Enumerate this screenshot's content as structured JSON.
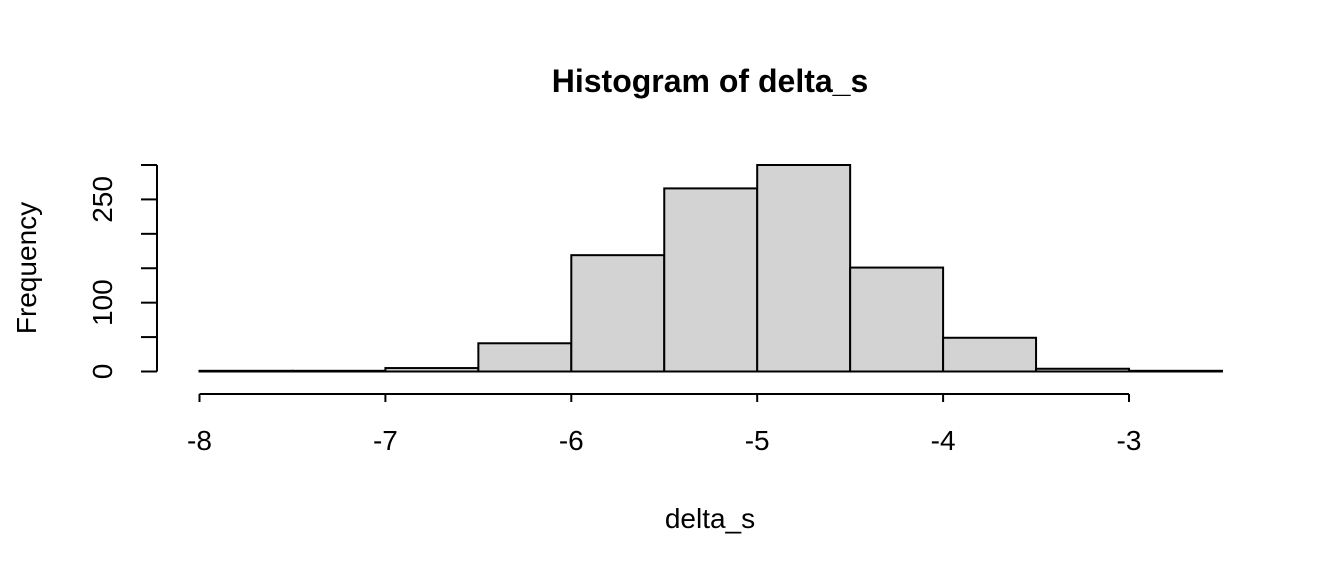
{
  "chart_data": {
    "type": "bar",
    "title": "Histogram of delta_s",
    "xlabel": "delta_s",
    "ylabel": "Frequency",
    "x_ticks": [
      -8,
      -7,
      -6,
      -5,
      -4,
      -3
    ],
    "x_tick_labels": [
      "-8",
      "-7",
      "-6",
      "-5",
      "-4",
      "-3"
    ],
    "y_ticks": [
      0,
      100,
      250
    ],
    "y_tick_labels": [
      "0",
      "100",
      "250"
    ],
    "y_minor_ticks": [
      50,
      150,
      200,
      300
    ],
    "xlim": [
      -8.15,
      -2.5
    ],
    "ylim": [
      0,
      300
    ],
    "bins": [
      {
        "start": -8.0,
        "end": -7.5,
        "count": 1
      },
      {
        "start": -7.5,
        "end": -7.0,
        "count": 1
      },
      {
        "start": -7.0,
        "end": -6.5,
        "count": 5
      },
      {
        "start": -6.5,
        "end": -6.0,
        "count": 41
      },
      {
        "start": -6.0,
        "end": -5.5,
        "count": 169
      },
      {
        "start": -5.5,
        "end": -5.0,
        "count": 266
      },
      {
        "start": -5.0,
        "end": -4.5,
        "count": 300
      },
      {
        "start": -4.5,
        "end": -4.0,
        "count": 151
      },
      {
        "start": -4.0,
        "end": -3.5,
        "count": 49
      },
      {
        "start": -3.5,
        "end": -3.0,
        "count": 4
      },
      {
        "start": -3.0,
        "end": -2.5,
        "count": 1
      }
    ],
    "colors": {
      "bar_fill": "#d3d3d3",
      "bar_stroke": "#000000",
      "text": "#000000"
    },
    "grid": false
  }
}
